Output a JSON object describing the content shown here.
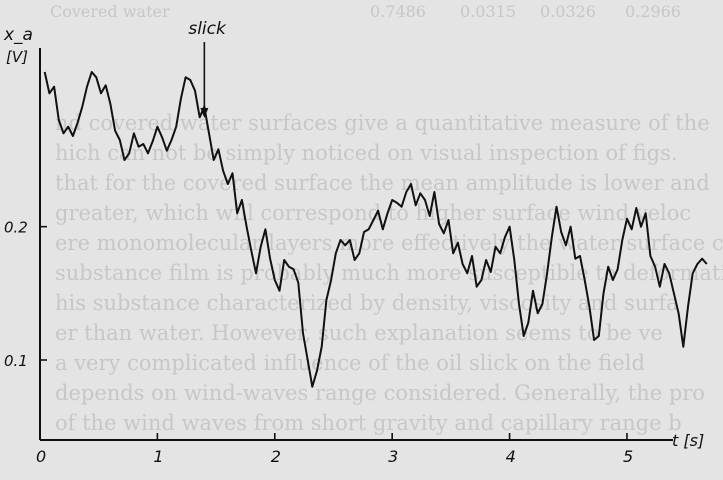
{
  "background_text": {
    "table_row": {
      "label": "Covered water",
      "values": [
        "0.7486",
        "0.0315",
        "0.0326",
        "0.2966"
      ]
    },
    "lines": [
      "nd covered water surfaces give a quantitative measure of the",
      "hich can not be simply noticed on visual inspection of figs.",
      "that for the covered surface the mean amplitude is lower and",
      "greater, which will correspond to higher surface wind veloc",
      "ere monomolecular layers more effectively the water surface c",
      "substance film is probably much more susceptible to deformati",
      "his substance characterized by density, viscosity and surfa",
      "er than water. However, such explanation seems to be ve",
      "a very complicated influence of the oil slick on the field",
      "depends on wind-waves range considered. Generally, the pro",
      "of the wind waves from short gravity and capillary range b"
    ]
  },
  "chart_data": {
    "type": "line",
    "title": "",
    "ylabel": "x_a",
    "yunit": "[V]",
    "xlabel": "t [s]",
    "xlim": [
      0,
      5.75
    ],
    "ylim": [
      0.04,
      0.34
    ],
    "xticks": [
      0,
      1,
      2,
      3,
      4,
      5
    ],
    "xtick_labels": [
      "0",
      "1",
      "2",
      "3",
      "4",
      "5"
    ],
    "yticks": [
      0.1,
      0.2
    ],
    "ytick_labels": [
      "0.1",
      "0.2"
    ],
    "grid": false,
    "annotations": [
      {
        "text": "slick",
        "x": 1.4,
        "y": 0.28,
        "arrow": true
      }
    ],
    "series": [
      {
        "name": "",
        "x": [
          0.04,
          0.08,
          0.12,
          0.16,
          0.2,
          0.24,
          0.28,
          0.32,
          0.36,
          0.4,
          0.44,
          0.48,
          0.52,
          0.56,
          0.6,
          0.64,
          0.68,
          0.72,
          0.76,
          0.8,
          0.84,
          0.88,
          0.92,
          0.96,
          1.0,
          1.04,
          1.08,
          1.12,
          1.16,
          1.2,
          1.24,
          1.28,
          1.32,
          1.36,
          1.4,
          1.44,
          1.48,
          1.52,
          1.56,
          1.6,
          1.64,
          1.68,
          1.72,
          1.76,
          1.8,
          1.84,
          1.88,
          1.92,
          1.96,
          2.0,
          2.04,
          2.08,
          2.12,
          2.16,
          2.2,
          2.24,
          2.28,
          2.32,
          2.36,
          2.4,
          2.44,
          2.48,
          2.52,
          2.56,
          2.6,
          2.64,
          2.68,
          2.72,
          2.76,
          2.8,
          2.84,
          2.88,
          2.92,
          2.96,
          3.0,
          3.04,
          3.08,
          3.12,
          3.16,
          3.2,
          3.24,
          3.28,
          3.32,
          3.36,
          3.4,
          3.44,
          3.48,
          3.52,
          3.56,
          3.6,
          3.64,
          3.68,
          3.72,
          3.76,
          3.8,
          3.84,
          3.88,
          3.92,
          3.96,
          4.0,
          4.04,
          4.08,
          4.12,
          4.16,
          4.2,
          4.24,
          4.28,
          4.32,
          4.36,
          4.4,
          4.44,
          4.48,
          4.52,
          4.56,
          4.6,
          4.64,
          4.68,
          4.72,
          4.76,
          4.8,
          4.84,
          4.88,
          4.92,
          4.96,
          5.0,
          5.04,
          5.08,
          5.12,
          5.16,
          5.2,
          5.24,
          5.28,
          5.32,
          5.36,
          5.4,
          5.44,
          5.48,
          5.52,
          5.56,
          5.6,
          5.64,
          5.68
        ],
        "y": [
          0.316,
          0.3,
          0.305,
          0.28,
          0.27,
          0.275,
          0.268,
          0.278,
          0.29,
          0.305,
          0.316,
          0.312,
          0.3,
          0.306,
          0.292,
          0.272,
          0.265,
          0.25,
          0.255,
          0.27,
          0.26,
          0.262,
          0.255,
          0.264,
          0.275,
          0.267,
          0.257,
          0.265,
          0.275,
          0.296,
          0.312,
          0.31,
          0.302,
          0.282,
          0.29,
          0.27,
          0.25,
          0.258,
          0.242,
          0.232,
          0.24,
          0.21,
          0.22,
          0.2,
          0.182,
          0.165,
          0.185,
          0.198,
          0.176,
          0.16,
          0.152,
          0.175,
          0.17,
          0.168,
          0.158,
          0.12,
          0.1,
          0.08,
          0.092,
          0.11,
          0.145,
          0.16,
          0.18,
          0.19,
          0.186,
          0.19,
          0.175,
          0.18,
          0.196,
          0.198,
          0.205,
          0.212,
          0.198,
          0.21,
          0.22,
          0.218,
          0.215,
          0.226,
          0.232,
          0.216,
          0.225,
          0.22,
          0.208,
          0.226,
          0.202,
          0.195,
          0.205,
          0.18,
          0.188,
          0.172,
          0.165,
          0.178,
          0.155,
          0.16,
          0.175,
          0.166,
          0.185,
          0.18,
          0.192,
          0.2,
          0.175,
          0.142,
          0.118,
          0.128,
          0.152,
          0.135,
          0.142,
          0.165,
          0.192,
          0.215,
          0.196,
          0.186,
          0.2,
          0.176,
          0.178,
          0.16,
          0.14,
          0.115,
          0.118,
          0.15,
          0.17,
          0.16,
          0.168,
          0.19,
          0.206,
          0.198,
          0.214,
          0.2,
          0.21,
          0.178,
          0.17,
          0.155,
          0.172,
          0.165,
          0.15,
          0.135,
          0.11,
          0.14,
          0.165,
          0.172,
          0.176,
          0.172
        ]
      }
    ]
  }
}
